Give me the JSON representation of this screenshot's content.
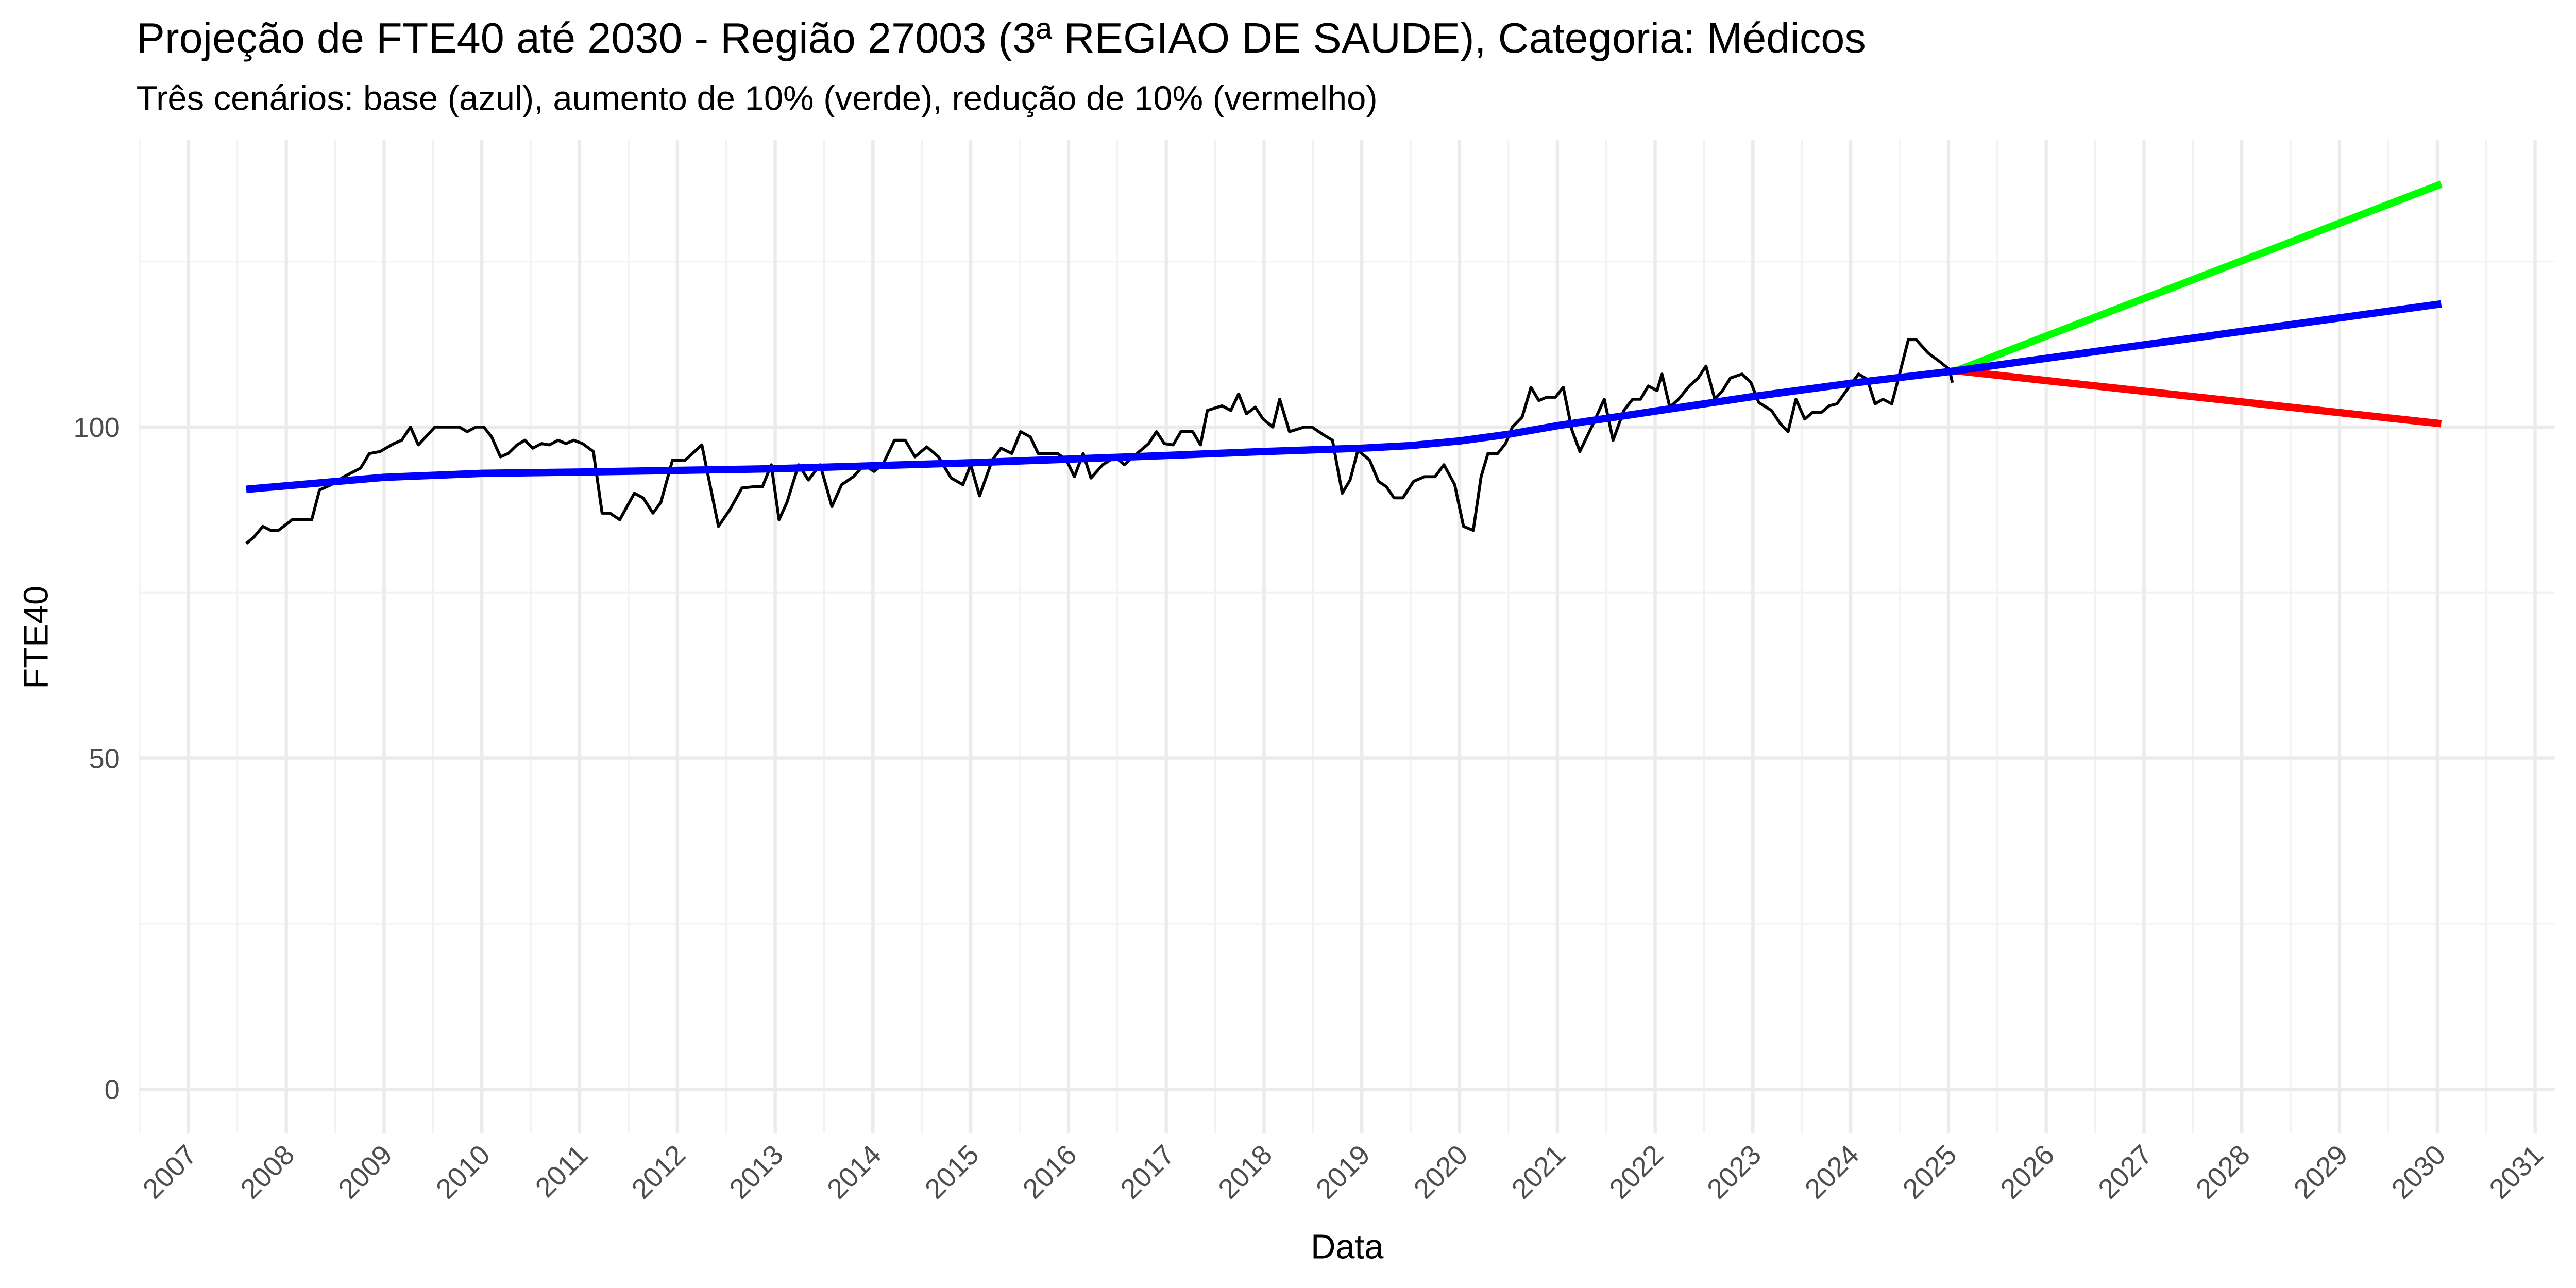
{
  "chart_data": {
    "type": "line",
    "title": "Projeção de FTE40 até 2030 - Região 27003 (3ª REGIAO DE SAUDE), Categoria: Médicos",
    "subtitle": "Três cenários: base (azul), aumento de 10% (verde), redução de 10% (vermelho)",
    "xlabel": "Data",
    "ylabel": "FTE40",
    "xlim": [
      2006.5,
      2031.2
    ],
    "xticks": [
      2007,
      2008,
      2009,
      2010,
      2011,
      2012,
      2013,
      2014,
      2015,
      2016,
      2017,
      2018,
      2019,
      2020,
      2021,
      2022,
      2023,
      2024,
      2025,
      2026,
      2027,
      2028,
      2029,
      2030,
      2031
    ],
    "ylim": [
      -6.7,
      143.4
    ],
    "yticks": [
      0,
      50,
      100
    ],
    "grid": true,
    "series": [
      {
        "color": "#000000",
        "x": [
          2007.59,
          2007.67,
          2007.76,
          2007.84,
          2007.92,
          2008.06,
          2008.26,
          2008.34,
          2008.46,
          2008.59,
          2008.76,
          2008.85,
          2008.96,
          2009.1,
          2009.18,
          2009.27,
          2009.35,
          2009.52,
          2009.77,
          2009.85,
          2009.94,
          2010.02,
          2010.1,
          2010.19,
          2010.27,
          2010.36,
          2010.44,
          2010.52,
          2010.61,
          2010.69,
          2010.78,
          2010.86,
          2010.94,
          2011.03,
          2011.14,
          2011.23,
          2011.31,
          2011.41,
          2011.56,
          2011.65,
          2011.75,
          2011.83,
          2011.95,
          2012.08,
          2012.25,
          2012.42,
          2012.54,
          2012.66,
          2012.79,
          2012.87,
          2012.96,
          2013.04,
          2013.12,
          2013.24,
          2013.34,
          2013.46,
          2013.58,
          2013.68,
          2013.8,
          2013.91,
          2014.01,
          2014.1,
          2014.22,
          2014.33,
          2014.43,
          2014.55,
          2014.67,
          2014.8,
          2014.92,
          2015.0,
          2015.09,
          2015.22,
          2015.31,
          2015.42,
          2015.51,
          2015.61,
          2015.69,
          2015.89,
          2015.98,
          2016.06,
          2016.15,
          2016.23,
          2016.35,
          2016.48,
          2016.57,
          2016.7,
          2016.82,
          2016.9,
          2016.98,
          2017.07,
          2017.15,
          2017.27,
          2017.35,
          2017.42,
          2017.57,
          2017.66,
          2017.74,
          2017.82,
          2017.91,
          2017.99,
          2018.09,
          2018.16,
          2018.26,
          2018.41,
          2018.49,
          2018.61,
          2018.7,
          2018.8,
          2018.88,
          2018.96,
          2019.08,
          2019.17,
          2019.25,
          2019.33,
          2019.42,
          2019.53,
          2019.64,
          2019.75,
          2019.84,
          2019.95,
          2020.04,
          2020.14,
          2020.22,
          2020.29,
          2020.39,
          2020.47,
          2020.54,
          2020.64,
          2020.73,
          2020.81,
          2020.89,
          2020.98,
          2021.06,
          2021.15,
          2021.23,
          2021.35,
          2021.48,
          2021.57,
          2021.68,
          2021.77,
          2021.85,
          2021.93,
          2022.02,
          2022.07,
          2022.15,
          2022.24,
          2022.35,
          2022.44,
          2022.52,
          2022.61,
          2022.69,
          2022.77,
          2022.89,
          2022.98,
          2023.06,
          2023.19,
          2023.28,
          2023.36,
          2023.44,
          2023.53,
          2023.61,
          2023.7,
          2023.78,
          2023.86,
          2023.98,
          2024.08,
          2024.17,
          2024.25,
          2024.33,
          2024.42,
          2024.5,
          2024.59,
          2024.67,
          2024.79,
          2024.9,
          2025.01,
          2025.04
        ],
        "values": [
          82.4,
          83.4,
          85,
          84.4,
          84.4,
          86,
          86,
          90.5,
          91.3,
          92.5,
          93.8,
          96,
          96.3,
          97.5,
          98,
          100,
          97.3,
          100,
          100,
          99.3,
          100,
          100,
          98.5,
          95.5,
          96,
          97.3,
          98,
          96.8,
          97.5,
          97.3,
          98,
          97.5,
          98,
          97.5,
          96.3,
          87,
          87,
          86,
          90,
          89.3,
          87,
          88.6,
          95,
          95,
          97.3,
          85,
          87.6,
          90.8,
          91,
          91,
          94.3,
          86,
          88.6,
          94.3,
          92,
          94.3,
          88,
          91.3,
          92.5,
          94.3,
          93.3,
          94.3,
          98,
          98,
          95.5,
          97,
          95.5,
          92.3,
          91.3,
          94.3,
          89.6,
          95,
          96.8,
          96,
          99.3,
          98.5,
          96,
          96,
          95,
          92.5,
          96,
          92.3,
          94.3,
          95.5,
          94.3,
          96,
          97.5,
          99.3,
          97.5,
          97.3,
          99.3,
          99.3,
          97.3,
          102.5,
          103.2,
          102.5,
          105,
          102,
          103,
          101.2,
          100,
          104.2,
          99.3,
          100,
          100,
          98.8,
          98,
          90,
          92,
          96.5,
          95,
          91.8,
          91,
          89.3,
          89.3,
          91.8,
          92.5,
          92.5,
          94.3,
          91.3,
          85,
          84.4,
          92.5,
          96,
          96,
          97.5,
          100,
          101.5,
          106,
          104,
          104.5,
          104.5,
          106,
          99.5,
          96.3,
          100,
          104.2,
          98,
          102.5,
          104.2,
          104.2,
          106.2,
          105.5,
          108,
          103,
          104.2,
          106.2,
          107.4,
          109.2,
          104.2,
          105.5,
          107.4,
          108,
          106.7,
          103.7,
          102.5,
          100.5,
          99.3,
          104.2,
          101.2,
          102.2,
          102.2,
          103.2,
          103.5,
          106,
          108,
          107.2,
          103.5,
          104.2,
          103.5,
          108,
          113.2,
          113.2,
          111.2,
          110,
          108.7,
          106.7
        ]
      },
      {
        "color": "#00ff00",
        "x": [
          2025.08,
          2030.04
        ],
        "values": [
          108.5,
          136.7
        ]
      },
      {
        "color": "#ff0000",
        "x": [
          2025.08,
          2030.04
        ],
        "values": [
          108.5,
          100.5
        ]
      },
      {
        "color": "#0000ff",
        "x": [
          2007.59,
          2009,
          2010,
          2011,
          2013,
          2015,
          2017,
          2018,
          2019,
          2019.5,
          2020,
          2020.5,
          2021,
          2022,
          2023,
          2024,
          2025.08,
          2030.04
        ],
        "values": [
          90.6,
          92.4,
          93.0,
          93.2,
          93.7,
          94.6,
          95.7,
          96.3,
          96.8,
          97.2,
          97.9,
          98.9,
          100.2,
          102.4,
          104.6,
          106.6,
          108.5,
          118.6
        ]
      }
    ]
  }
}
